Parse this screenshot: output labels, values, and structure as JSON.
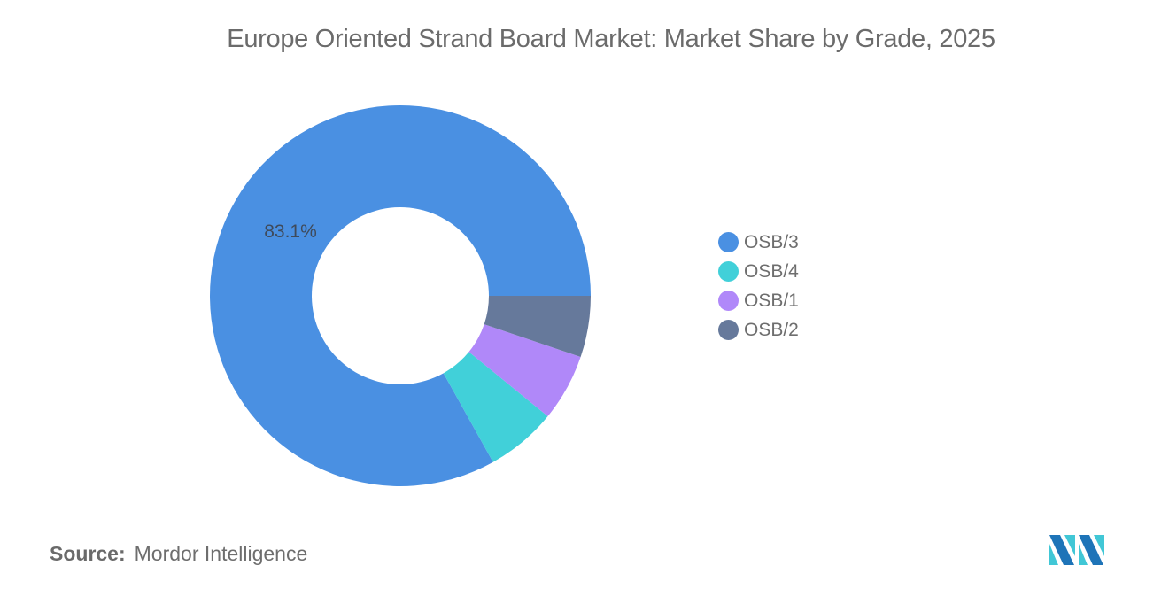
{
  "chart_data": {
    "type": "pie",
    "subtype": "donut",
    "title": "Europe Oriented Strand Board Market: Market Share by Grade, 2025",
    "categories": [
      "OSB/3",
      "OSB/4",
      "OSB/1",
      "OSB/2"
    ],
    "values": [
      83.1,
      6.0,
      5.7,
      5.2
    ],
    "unit": "%",
    "colors": [
      "#4A90E2",
      "#41D0D9",
      "#B088F9",
      "#66799B"
    ],
    "data_labels": [
      {
        "category": "OSB/3",
        "text": "83.1%"
      }
    ],
    "legend_position": "right"
  },
  "title": "Europe Oriented Strand Board Market: Market Share by Grade, 2025",
  "slice_label": "83.1%",
  "legend": {
    "items": [
      {
        "label": "OSB/3",
        "color": "#4A90E2"
      },
      {
        "label": "OSB/4",
        "color": "#41D0D9"
      },
      {
        "label": "OSB/1",
        "color": "#B088F9"
      },
      {
        "label": "OSB/2",
        "color": "#66799B"
      }
    ]
  },
  "footer": {
    "source_label": "Source:",
    "source_value": "Mordor Intelligence"
  },
  "logo": {
    "name": "mordor-intelligence-logo",
    "colors": [
      "#1E74B8",
      "#41C7D6"
    ]
  }
}
